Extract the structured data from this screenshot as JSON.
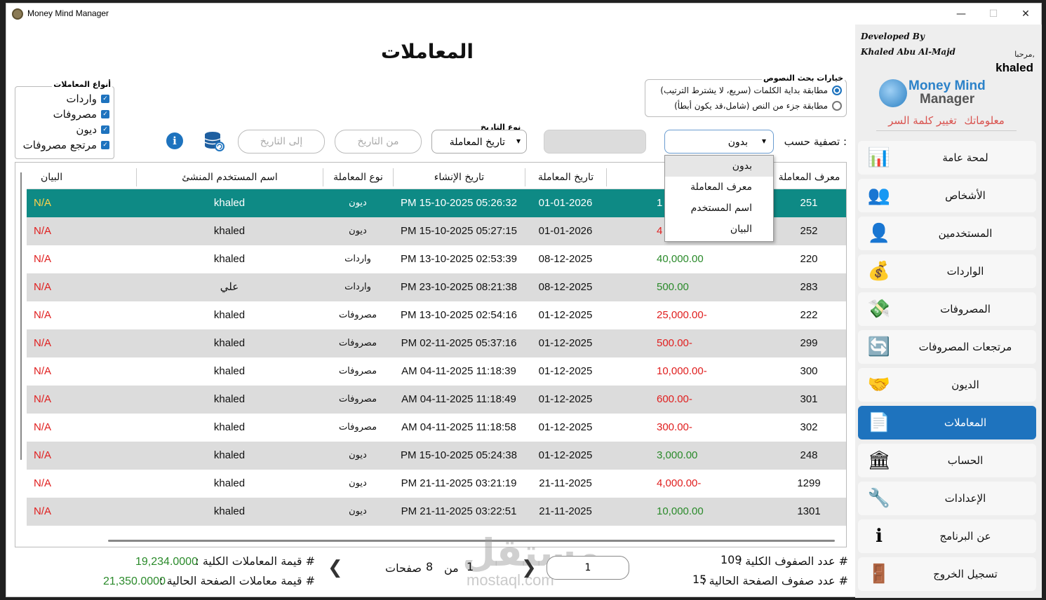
{
  "window": {
    "title": "Money Mind Manager",
    "minimize": "—",
    "maximize": "☐",
    "close": "✕"
  },
  "sidebar": {
    "developer_line1": "Developed By",
    "developer_line2": "Khaled Abu Al-Majd",
    "welcome": "مرحبا,",
    "username": "khaled",
    "logo_line1": "Money Mind",
    "logo_line2": "Manager",
    "my_info": "معلوماتك",
    "change_password": "تغيير كلمة السر",
    "items": [
      {
        "label": "لمحة عامة",
        "icon": "📊"
      },
      {
        "label": "الأشخاص",
        "icon": "👥"
      },
      {
        "label": "المستخدمين",
        "icon": "👤"
      },
      {
        "label": "الواردات",
        "icon": "💰"
      },
      {
        "label": "المصروفات",
        "icon": "💸"
      },
      {
        "label": "مرتجعات المصروفات",
        "icon": "🔄"
      },
      {
        "label": "الديون",
        "icon": "🤝"
      },
      {
        "label": "المعاملات",
        "icon": "📄"
      },
      {
        "label": "الحساب",
        "icon": "🏛"
      },
      {
        "label": "الإعدادات",
        "icon": "🔧"
      },
      {
        "label": "عن البرنامج",
        "icon": "ℹ"
      },
      {
        "label": "تسجيل الخروج",
        "icon": "🚪"
      }
    ],
    "active_index": 7
  },
  "main": {
    "title": "المعاملات",
    "types_legend": "أنواع المعاملات",
    "types": [
      "واردات",
      "مصروفات",
      "ديون",
      "مرتجع مصروفات"
    ],
    "search_legend": "خيارات بحث النصوص",
    "search_options": [
      "مطابقة بداية الكلمات (سريع، لا يشترط الترتيب)",
      "مطابقة جزء من النص (شامل،قد يكون أبطأ)"
    ],
    "filter_label": "تصفية حسب :",
    "filter_value": "بدون",
    "filter_options": [
      "بدون",
      "معرف المعاملة",
      "اسم المستخدم",
      "البيان"
    ],
    "date_type_legend": "نوع التاريخ",
    "date_type_value": "تاريخ المعاملة",
    "from_date": "من التاريخ",
    "to_date": "إلى التاريخ"
  },
  "table": {
    "headers": [
      "معرف المعاملة",
      "",
      "تاريخ المعاملة",
      "تاريخ الإنشاء",
      "نوع المعاملة",
      "اسم المستخدم المنشئ",
      "البيان"
    ],
    "rows": [
      {
        "id": "251",
        "amount": "1",
        "amount_class": "pos",
        "date": "01-01-2026",
        "created": "PM 15-10-2025 05:26:32",
        "type": "ديون",
        "user": "khaled",
        "note": "N/A"
      },
      {
        "id": "252",
        "amount": "4",
        "amount_class": "neg",
        "date": "01-01-2026",
        "created": "PM 15-10-2025 05:27:15",
        "type": "ديون",
        "user": "khaled",
        "note": "N/A"
      },
      {
        "id": "220",
        "amount": "40,000.00",
        "amount_class": "pos",
        "date": "08-12-2025",
        "created": "PM 13-10-2025 02:53:39",
        "type": "واردات",
        "user": "khaled",
        "note": "N/A"
      },
      {
        "id": "283",
        "amount": "500.00",
        "amount_class": "pos",
        "date": "08-12-2025",
        "created": "PM 23-10-2025 08:21:38",
        "type": "واردات",
        "user": "علي",
        "note": "N/A"
      },
      {
        "id": "222",
        "amount": "25,000.00-",
        "amount_class": "neg",
        "date": "01-12-2025",
        "created": "PM 13-10-2025 02:54:16",
        "type": "مصروفات",
        "user": "khaled",
        "note": "N/A"
      },
      {
        "id": "299",
        "amount": "500.00-",
        "amount_class": "neg",
        "date": "01-12-2025",
        "created": "PM 02-11-2025 05:37:16",
        "type": "مصروفات",
        "user": "khaled",
        "note": "N/A"
      },
      {
        "id": "300",
        "amount": "10,000.00-",
        "amount_class": "neg",
        "date": "01-12-2025",
        "created": "AM 04-11-2025 11:18:39",
        "type": "مصروفات",
        "user": "khaled",
        "note": "N/A"
      },
      {
        "id": "301",
        "amount": "600.00-",
        "amount_class": "neg",
        "date": "01-12-2025",
        "created": "AM 04-11-2025 11:18:49",
        "type": "مصروفات",
        "user": "khaled",
        "note": "N/A"
      },
      {
        "id": "302",
        "amount": "300.00-",
        "amount_class": "neg",
        "date": "01-12-2025",
        "created": "AM 04-11-2025 11:18:58",
        "type": "مصروفات",
        "user": "khaled",
        "note": "N/A"
      },
      {
        "id": "248",
        "amount": "3,000.00",
        "amount_class": "pos",
        "date": "01-12-2025",
        "created": "PM 15-10-2025 05:24:38",
        "type": "ديون",
        "user": "khaled",
        "note": "N/A"
      },
      {
        "id": "1299",
        "amount": "4,000.00-",
        "amount_class": "neg",
        "date": "21-11-2025",
        "created": "PM 21-11-2025 03:21:19",
        "type": "ديون",
        "user": "khaled",
        "note": "N/A"
      },
      {
        "id": "1301",
        "amount": "10,000.00",
        "amount_class": "pos",
        "date": "21-11-2025",
        "created": "PM 21-11-2025 03:22:51",
        "type": "ديون",
        "user": "khaled",
        "note": "N/A"
      }
    ],
    "selected_index": 0
  },
  "footer": {
    "total_rows_label": "# عدد الصفوف الكلية :",
    "total_rows": "109",
    "page_rows_label": "# عدد صفوف الصفحة الحالية :",
    "page_rows": "15",
    "page_input": "1",
    "current_page": "1",
    "of": "من",
    "total_pages": "8",
    "pages_word": "صفحات",
    "total_value_label": "# قيمة المعاملات الكلية :",
    "total_value": "19,234.0000",
    "page_value_label": "# قيمة معاملات الصفحة الحالية :",
    "page_value": "21,350.0000"
  },
  "watermark": {
    "arabic": "مستقل",
    "latin": "mostaql.com"
  },
  "colors": {
    "accent": "#1e73be",
    "selected_row": "#0e8a85",
    "negative": "#e01e1e",
    "positive": "#2a8a2a"
  }
}
